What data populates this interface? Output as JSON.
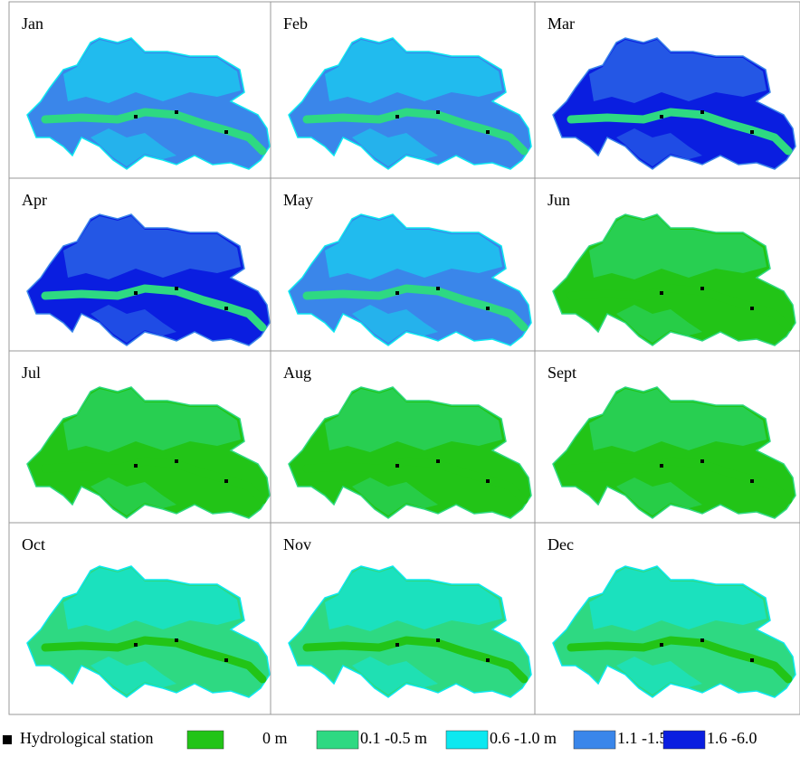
{
  "panels": [
    {
      "label": "Jan",
      "colors": [
        "#3a86ea",
        "#0de8f0",
        "#2ed982"
      ]
    },
    {
      "label": "Feb",
      "colors": [
        "#3a86ea",
        "#0de8f0",
        "#2ed982"
      ]
    },
    {
      "label": "Mar",
      "colors": [
        "#0a1ee0",
        "#3a86ea",
        "#2ed982"
      ]
    },
    {
      "label": "Apr",
      "colors": [
        "#0a1ee0",
        "#3a86ea",
        "#2ed982"
      ]
    },
    {
      "label": "May",
      "colors": [
        "#3a86ea",
        "#0de8f0",
        "#2ed982"
      ]
    },
    {
      "label": "Jun",
      "colors": [
        "#22c417",
        "#2ed982",
        "#22c417"
      ]
    },
    {
      "label": "Jul",
      "colors": [
        "#22c417",
        "#2ed982",
        "#22c417"
      ]
    },
    {
      "label": "Aug",
      "colors": [
        "#22c417",
        "#2ed982",
        "#22c417"
      ]
    },
    {
      "label": "Sept",
      "colors": [
        "#22c417",
        "#2ed982",
        "#22c417"
      ]
    },
    {
      "label": "Oct",
      "colors": [
        "#2ed982",
        "#0de8f0",
        "#22c417"
      ]
    },
    {
      "label": "Nov",
      "colors": [
        "#2ed982",
        "#0de8f0",
        "#22c417"
      ]
    },
    {
      "label": "Dec",
      "colors": [
        "#2ed982",
        "#0de8f0",
        "#22c417"
      ]
    }
  ],
  "legend": {
    "station": "Hydrological station",
    "items": [
      {
        "label": "0 m",
        "color": "#22c417"
      },
      {
        "label": "0.1 -0.5 m",
        "color": "#2ed982"
      },
      {
        "label": "0.6 -1.0 m",
        "color": "#0de8f0"
      },
      {
        "label": "1.1 -1.5 m",
        "color": "#3a86ea"
      },
      {
        "label": "1.6 -6.0",
        "color": "#0a1ee0"
      }
    ]
  }
}
